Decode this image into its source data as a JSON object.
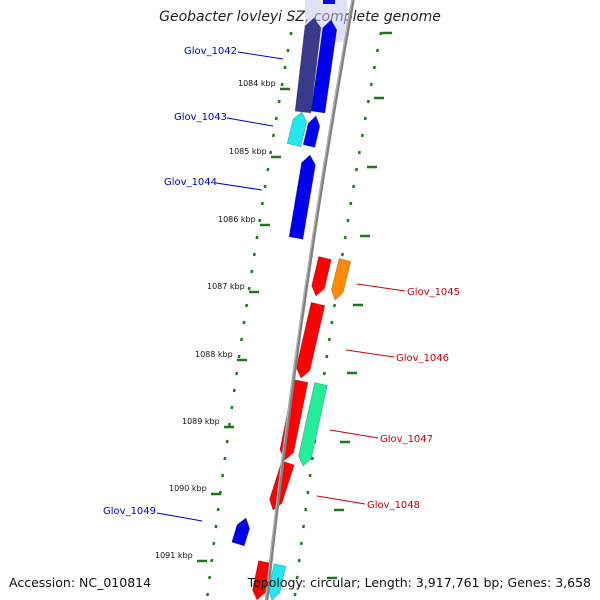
{
  "title": "Geobacter lovleyi SZ, complete genome",
  "footer": {
    "accession": "Accession: NC_010814",
    "summary": "Topology: circular; Length: 3,917,761 bp; Genes: 3,658"
  },
  "colors": {
    "backbone": "#808080",
    "tick": "#1a7a1a",
    "blue": "#0000ee",
    "navy": "#3a3a8c",
    "cyan": "#22e8ee",
    "red": "#ff0000",
    "orange": "#ff8c00",
    "green": "#22ee99"
  },
  "ruler_labels": [
    "1084 kbp",
    "1085 kbp",
    "1086 kbp",
    "1087 kbp",
    "1088 kbp",
    "1089 kbp",
    "1090 kbp",
    "1091 kbp"
  ],
  "gene_labels": [
    {
      "name": "Glov_1042",
      "strand": "reverse"
    },
    {
      "name": "Glov_1043",
      "strand": "reverse"
    },
    {
      "name": "Glov_1044",
      "strand": "reverse"
    },
    {
      "name": "Glov_1045",
      "strand": "forward"
    },
    {
      "name": "Glov_1046",
      "strand": "forward"
    },
    {
      "name": "Glov_1047",
      "strand": "forward"
    },
    {
      "name": "Glov_1048",
      "strand": "forward"
    },
    {
      "name": "Glov_1049",
      "strand": "reverse"
    }
  ]
}
